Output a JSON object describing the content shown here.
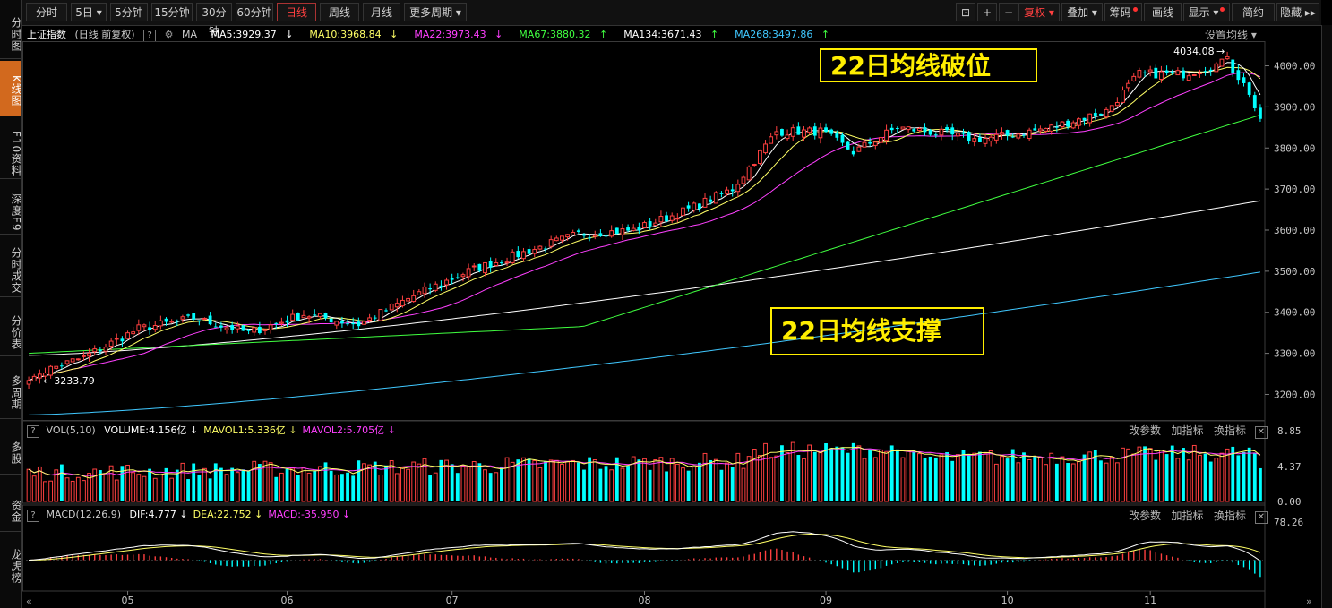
{
  "sidebar": {
    "items": [
      "分时图",
      "K线图",
      "F10资料",
      "深度F9",
      "分时成交",
      "分价表",
      "多周期",
      "多股",
      "资金",
      "龙虎榜"
    ],
    "active_index": 1
  },
  "toolbar": {
    "periods": [
      "分时",
      "5日",
      "5分钟",
      "15分钟",
      "30分钟",
      "60分钟",
      "日线",
      "周线",
      "月线",
      "更多周期"
    ],
    "active_period": "日线",
    "tools": [
      "+",
      "−",
      "复权",
      "叠加",
      "筹码",
      "画线",
      "显示",
      "简约",
      "隐藏"
    ]
  },
  "ma_legend": {
    "title": "上证指数",
    "subtitle": "(日线 前复权)",
    "ma_label": "MA",
    "items": [
      {
        "text": "MA5:3929.37",
        "arrow": "↓",
        "color": "#ffffff"
      },
      {
        "text": "MA10:3968.84",
        "arrow": "↓",
        "color": "#ffff66"
      },
      {
        "text": "MA22:3973.43",
        "arrow": "↓",
        "color": "#ff40ff"
      },
      {
        "text": "MA67:3880.32",
        "arrow": "↑",
        "color": "#40ff40"
      },
      {
        "text": "MA134:3671.43",
        "arrow": "↑",
        "color": "#ffffff"
      },
      {
        "text": "MA268:3497.86",
        "arrow": "↑",
        "color": "#40c8ff"
      }
    ],
    "settings": "设置均线"
  },
  "vol_legend": {
    "label": "VOL(5,10)",
    "items": [
      {
        "text": "VOLUME:4.156亿",
        "arrow": "↓",
        "color": "#ffffff"
      },
      {
        "text": "MAVOL1:5.336亿",
        "arrow": "↓",
        "color": "#ffff66"
      },
      {
        "text": "MAVOL2:5.705亿",
        "arrow": "↓",
        "color": "#ff40ff"
      }
    ],
    "tools": [
      "改参数",
      "加指标",
      "换指标"
    ]
  },
  "macd_legend": {
    "label": "MACD(12,26,9)",
    "items": [
      {
        "text": "DIF:4.777",
        "arrow": "↓",
        "color": "#ffffff"
      },
      {
        "text": "DEA:22.752",
        "arrow": "↓",
        "color": "#ffff66"
      },
      {
        "text": "MACD:-35.950",
        "arrow": "↓",
        "color": "#ff40ff"
      }
    ],
    "tools": [
      "改参数",
      "加指标",
      "换指标"
    ]
  },
  "annotations": {
    "top_callout": "22日均线破位",
    "bottom_callout": "22日均线支撑",
    "high_label": "4034.08",
    "low_label": "3233.79"
  },
  "chart_data": {
    "type": "candlestick",
    "price_axis": {
      "ticks": [
        "4000.00",
        "3900.00",
        "3800.00",
        "3700.00",
        "3600.00",
        "3500.00",
        "3400.00",
        "3300.00",
        "3200.00"
      ],
      "ylim": [
        3140,
        4060
      ]
    },
    "volume_axis": {
      "ticks": [
        "8.85",
        "4.37",
        "0.00"
      ],
      "ylim": [
        0,
        9.2
      ]
    },
    "macd_axis": {
      "ticks": [
        "78.26"
      ],
      "ylim": [
        -60,
        95
      ]
    },
    "month_labels": [
      "05",
      "06",
      "07",
      "08",
      "09",
      "10",
      "11"
    ],
    "month_start_index": [
      18,
      47,
      77,
      112,
      145,
      178,
      204
    ],
    "bars": 225,
    "close_anchors": [
      [
        0,
        3245
      ],
      [
        10,
        3290
      ],
      [
        20,
        3360
      ],
      [
        30,
        3385
      ],
      [
        40,
        3350
      ],
      [
        50,
        3395
      ],
      [
        60,
        3370
      ],
      [
        70,
        3440
      ],
      [
        80,
        3500
      ],
      [
        90,
        3545
      ],
      [
        100,
        3590
      ],
      [
        110,
        3600
      ],
      [
        120,
        3650
      ],
      [
        128,
        3700
      ],
      [
        136,
        3840
      ],
      [
        144,
        3840
      ],
      [
        150,
        3790
      ],
      [
        158,
        3850
      ],
      [
        166,
        3835
      ],
      [
        172,
        3820
      ],
      [
        178,
        3830
      ],
      [
        186,
        3850
      ],
      [
        196,
        3890
      ],
      [
        202,
        3980
      ],
      [
        210,
        3980
      ],
      [
        218,
        4010
      ],
      [
        222,
        3935
      ],
      [
        224,
        3860
      ]
    ],
    "high": {
      "value": 4034.08,
      "index": 218
    },
    "low": {
      "value": 3233.79,
      "index": 1
    },
    "ma_series": [
      {
        "name": "MA5",
        "color": "#ffffff",
        "end": 3929.37
      },
      {
        "name": "MA10",
        "color": "#ffff66",
        "end": 3968.84
      },
      {
        "name": "MA22",
        "color": "#ff40ff",
        "end": 3973.43
      },
      {
        "name": "MA67",
        "color": "#40ff40",
        "end": 3880.32
      },
      {
        "name": "MA134",
        "color": "#ffffff",
        "end": 3671.43
      },
      {
        "name": "MA268",
        "color": "#40c8ff",
        "end": 3497.86
      }
    ],
    "colors": {
      "up": "#ff4040",
      "down": "#00ffff",
      "dif": "#ffffff",
      "dea": "#ffff66"
    }
  }
}
